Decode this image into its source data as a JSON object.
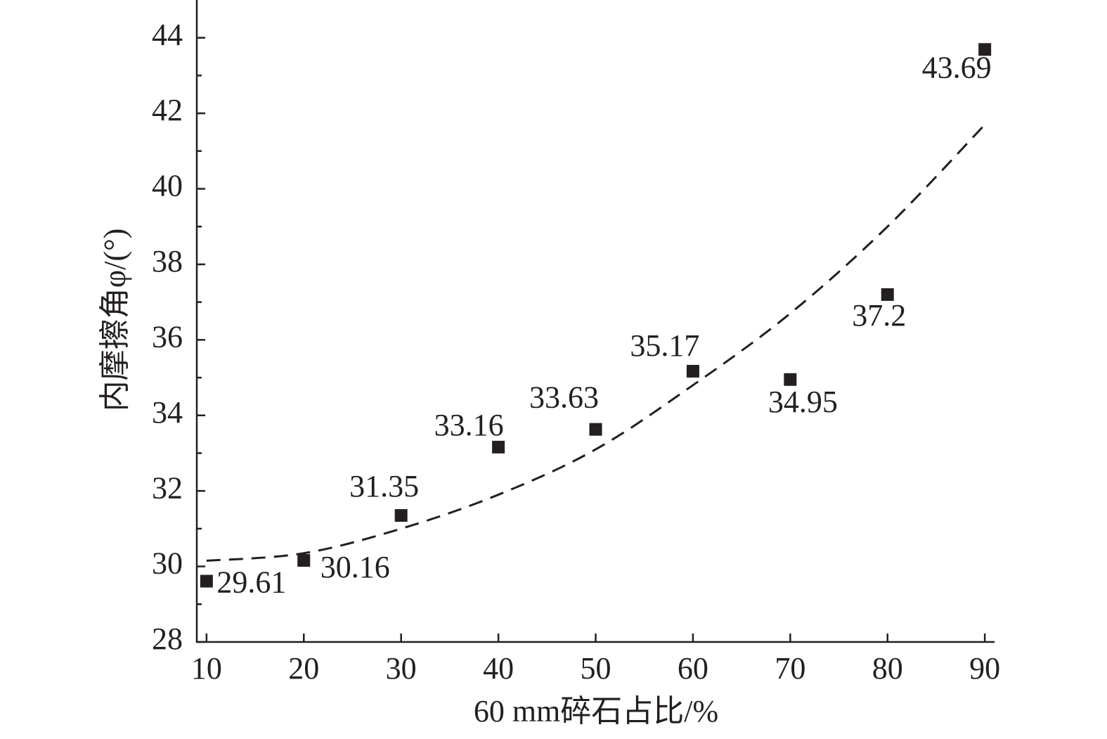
{
  "chart_data": {
    "type": "scatter",
    "x_label": "60 mm碎石占比/%",
    "y_label": "内摩擦角φ/(°)",
    "x": [
      10,
      20,
      30,
      40,
      50,
      60,
      70,
      80,
      90
    ],
    "values": [
      29.61,
      30.16,
      31.35,
      33.16,
      33.63,
      35.17,
      34.95,
      37.2,
      43.69
    ],
    "color": "#231f20",
    "fit": {
      "x": [
        10,
        20,
        30,
        40,
        50,
        60,
        70,
        80,
        90
      ],
      "values": [
        30.15,
        30.35,
        31.0,
        31.9,
        33.1,
        34.8,
        36.7,
        39.0,
        41.7
      ]
    },
    "xlim": [
      9,
      91
    ],
    "xticks": [
      10,
      20,
      30,
      40,
      50,
      60,
      70,
      80,
      90
    ],
    "ylim": [
      28,
      45
    ],
    "yticks": [
      28,
      30,
      32,
      34,
      36,
      38,
      40,
      42,
      44
    ]
  }
}
